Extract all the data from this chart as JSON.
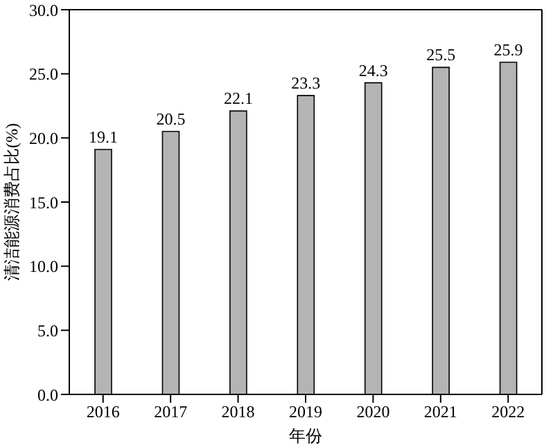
{
  "chart_data": {
    "type": "bar",
    "xlabel": "年份",
    "ylabel": "清洁能源消费占比(%)",
    "categories": [
      "2016",
      "2017",
      "2018",
      "2019",
      "2020",
      "2021",
      "2022"
    ],
    "values": [
      19.1,
      20.5,
      22.1,
      23.3,
      24.3,
      25.5,
      25.9
    ],
    "color": "#b4b4b4",
    "data_labels": true,
    "ylim": [
      0,
      30
    ],
    "yticks": [
      {
        "value": 0,
        "label": "0.0"
      },
      {
        "value": 5,
        "label": "5.0"
      },
      {
        "value": 10,
        "label": "10.0"
      },
      {
        "value": 15,
        "label": "15.0"
      },
      {
        "value": 20,
        "label": "20.0"
      },
      {
        "value": 25,
        "label": "25.0"
      },
      {
        "value": 30,
        "label": "30.0"
      }
    ]
  }
}
